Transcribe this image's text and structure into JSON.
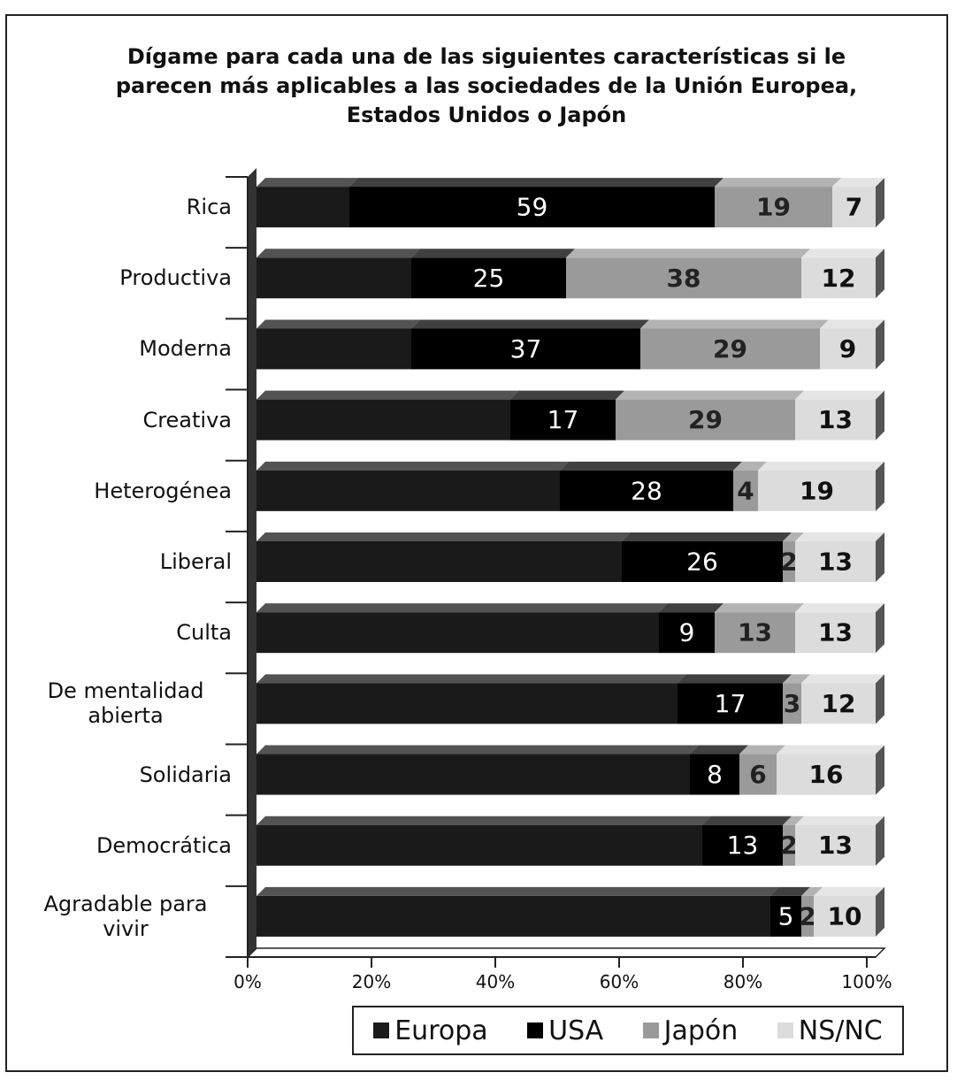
{
  "chart_data": {
    "type": "stacked_barh",
    "title": "Dígame para cada una de las siguientes características si le parecen más aplicables a las sociedades de la Unión Europea, Estados Unidos o Japón",
    "categories": [
      "Rica",
      "Productiva",
      "Moderna",
      "Creativa",
      "Heterogénea",
      "Liberal",
      "Culta",
      "De mentalidad abierta",
      "Solidaria",
      "Democrática",
      "Agradable para vivir"
    ],
    "series": [
      {
        "name": "Europa",
        "color": "#1a1a1a",
        "values": [
          15,
          25,
          25,
          41,
          49,
          59,
          65,
          68,
          70,
          72,
          83
        ]
      },
      {
        "name": "USA",
        "color": "#000000",
        "values": [
          59,
          25,
          37,
          17,
          28,
          26,
          9,
          17,
          8,
          13,
          5
        ]
      },
      {
        "name": "Japón",
        "color": "#9a9a9a",
        "values": [
          19,
          38,
          29,
          29,
          4,
          2,
          13,
          3,
          6,
          2,
          2
        ]
      },
      {
        "name": "NS/NC",
        "color": "#dcdcdc",
        "values": [
          7,
          12,
          9,
          13,
          19,
          13,
          13,
          12,
          16,
          13,
          10
        ]
      }
    ],
    "xlim": [
      0,
      100
    ],
    "xticks": [
      {
        "value": 0,
        "label": "0%"
      },
      {
        "value": 20,
        "label": "20%"
      },
      {
        "value": 40,
        "label": "40%"
      },
      {
        "value": 60,
        "label": "60%"
      },
      {
        "value": 80,
        "label": "80%"
      },
      {
        "value": 100,
        "label": "100%"
      }
    ],
    "legend": "bottom"
  }
}
